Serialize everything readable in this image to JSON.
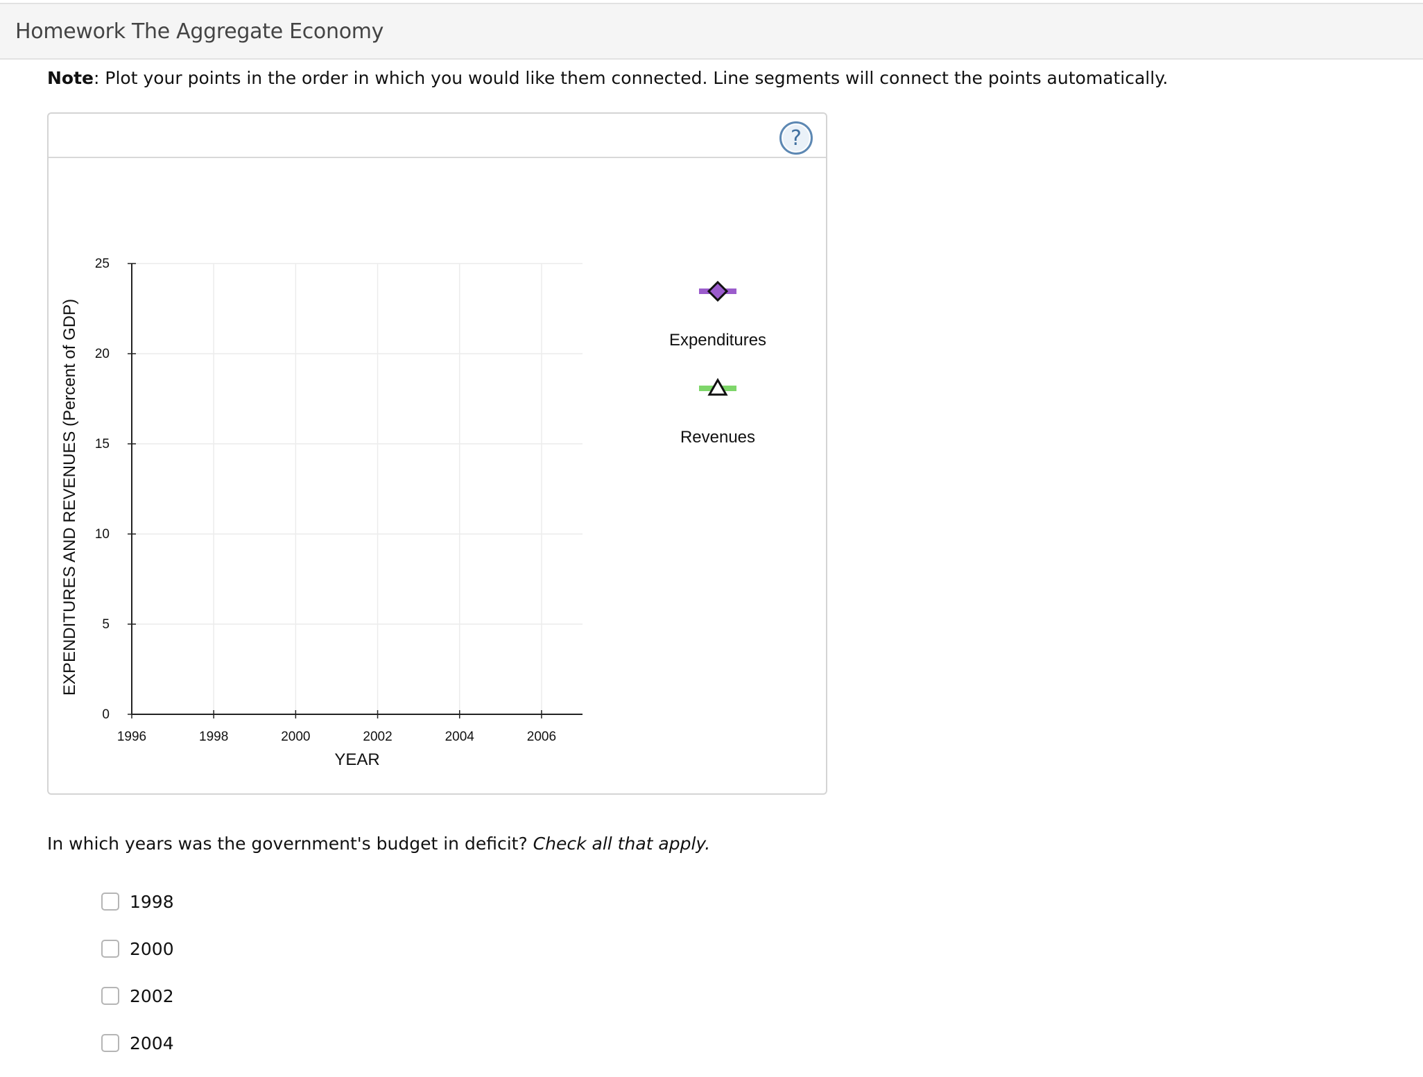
{
  "header": {
    "title": "Homework The Aggregate Economy"
  },
  "note": {
    "bold": "Note",
    "text": ": Plot your points in the order in which you would like them connected. Line segments will connect the points automatically."
  },
  "graph_tool": {
    "help_label": "?",
    "help_icon": "question-circle-icon",
    "legend": [
      {
        "label": "Expenditures",
        "marker": "diamond",
        "color": "#9b5ccc",
        "marker_fill": "#9b5ccc"
      },
      {
        "label": "Revenues",
        "marker": "triangle",
        "color": "#7ed66a",
        "marker_fill": "#ffffff"
      }
    ]
  },
  "chart_data": {
    "type": "line",
    "xlabel": "YEAR",
    "ylabel": "EXPENDITURES AND REVENUES (Percent of GDP)",
    "xlim": [
      1996,
      2007
    ],
    "ylim": [
      0,
      25
    ],
    "x_ticks": [
      1996,
      1998,
      2000,
      2002,
      2004,
      2006
    ],
    "y_ticks": [
      0,
      5,
      10,
      15,
      20,
      25
    ],
    "grid": true,
    "series": [
      {
        "name": "Expenditures",
        "x": [],
        "y": []
      },
      {
        "name": "Revenues",
        "x": [],
        "y": []
      }
    ]
  },
  "question": {
    "text": "In which years was the government's budget in deficit? ",
    "emphasis": "Check all that apply.",
    "options": [
      {
        "label": "1998",
        "checked": false
      },
      {
        "label": "2000",
        "checked": false
      },
      {
        "label": "2002",
        "checked": false
      },
      {
        "label": "2004",
        "checked": false
      }
    ]
  }
}
